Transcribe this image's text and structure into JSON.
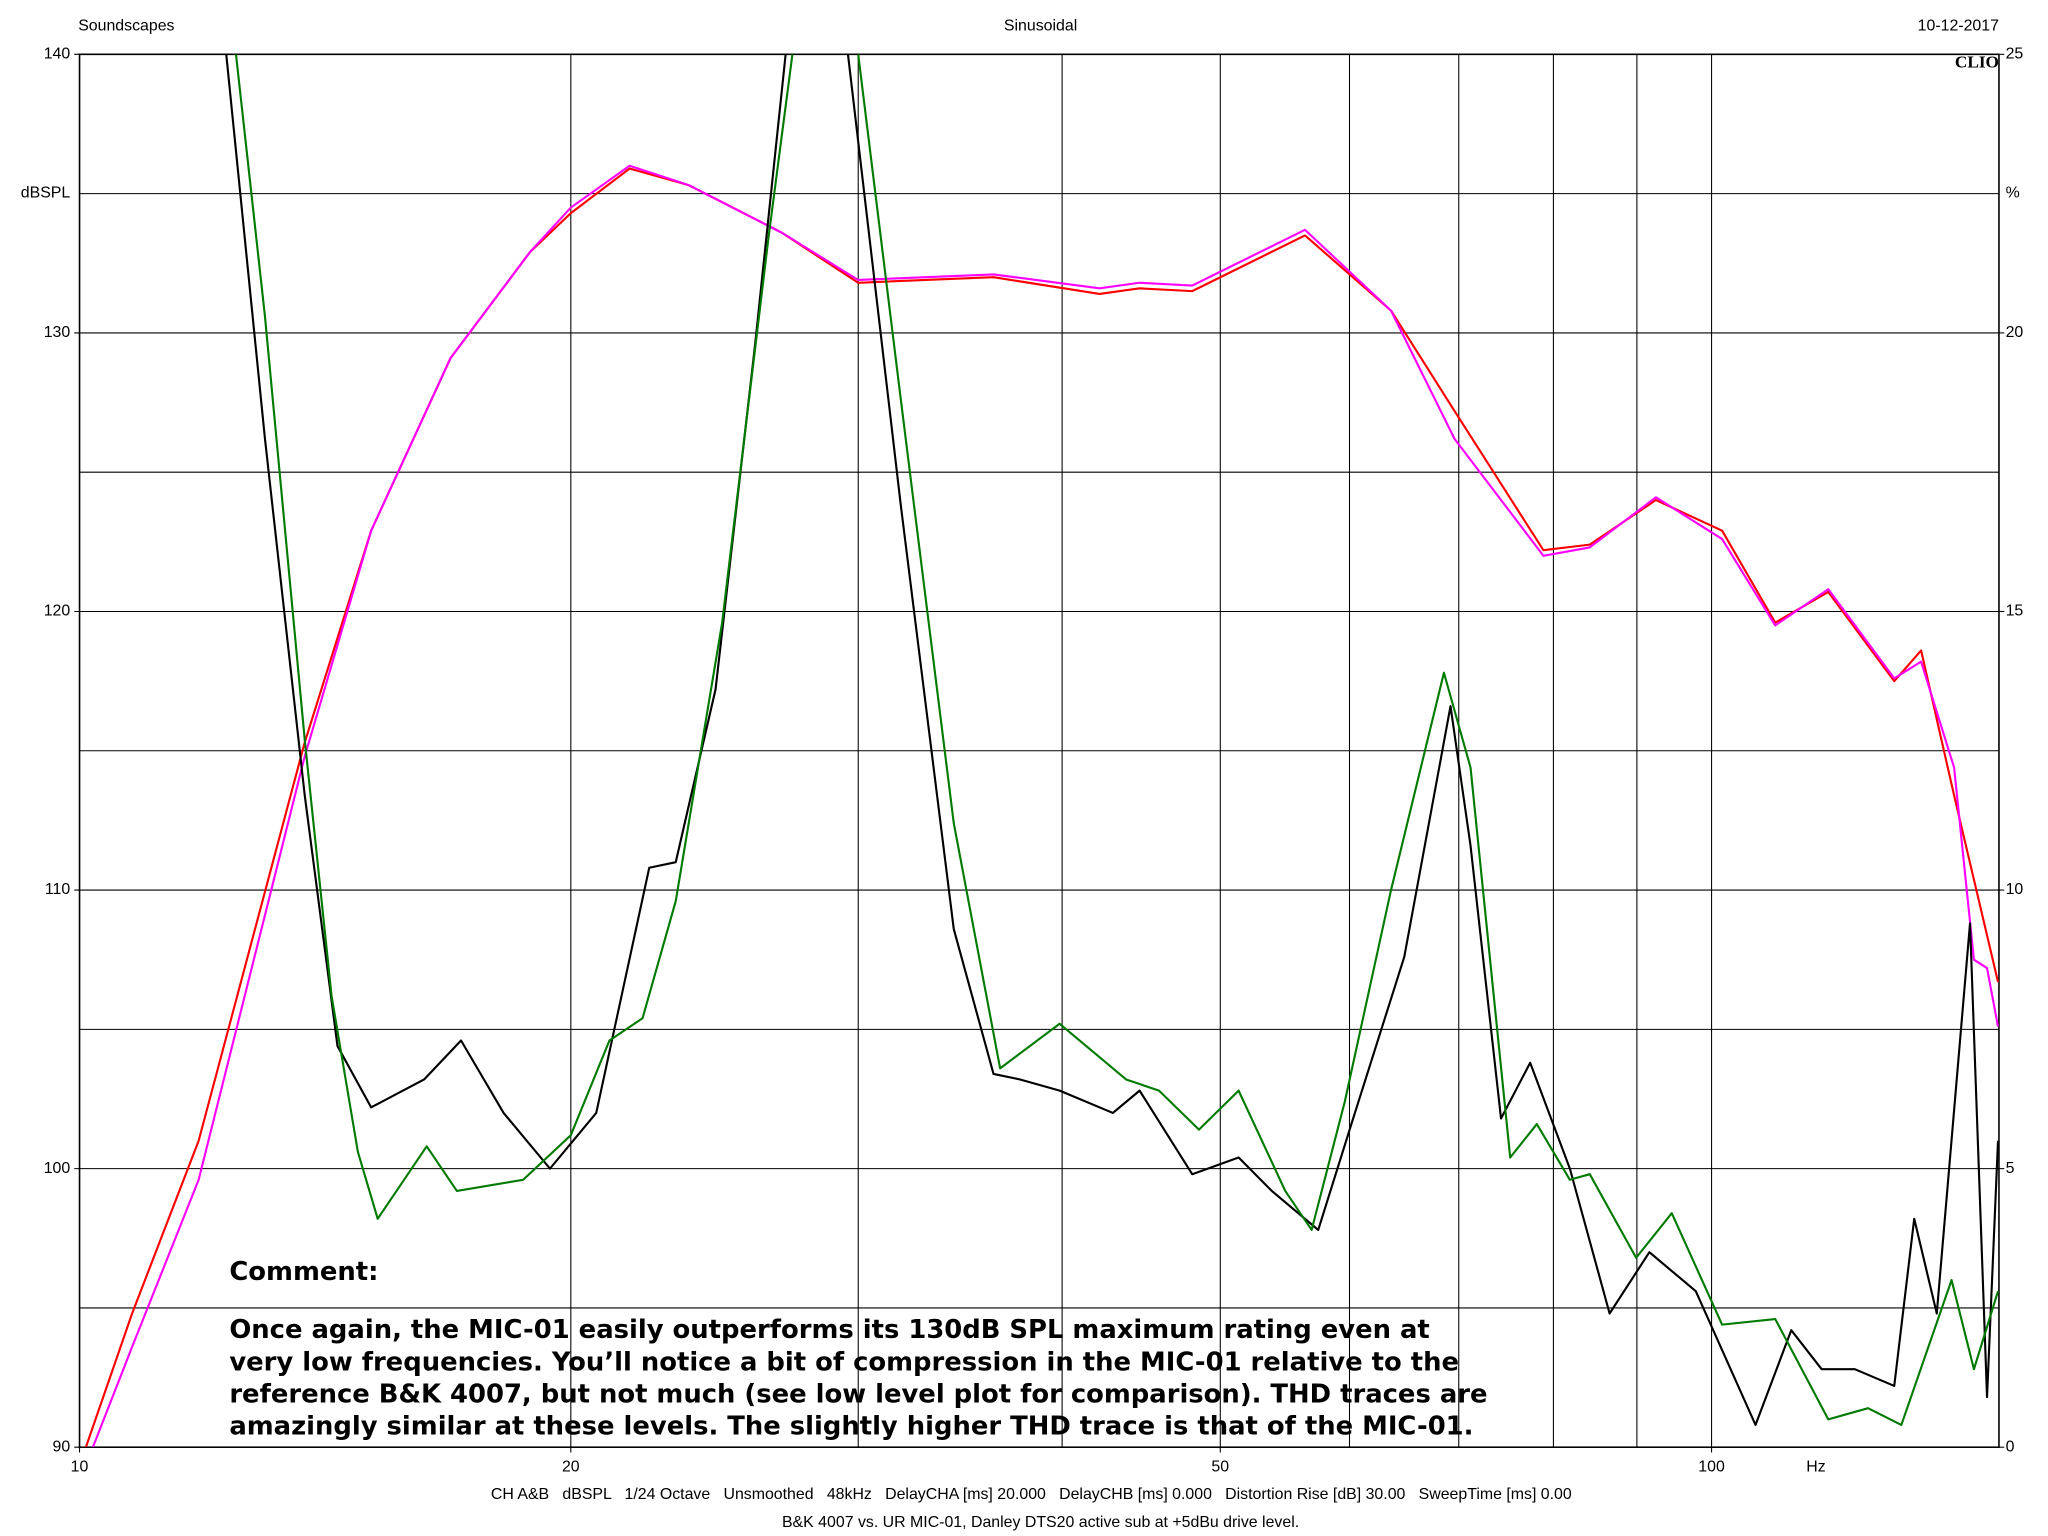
{
  "chart_data": {
    "type": "line",
    "header_left": "Soundscapes",
    "header_center": "Sinusoidal",
    "header_right": "10-12-2017",
    "brand": "CLIO",
    "ylabel": "dBSPL",
    "y2label": "%",
    "xlabel": "Hz",
    "log_x": true,
    "grid": true,
    "xlim": [
      10,
      150
    ],
    "xticks": [
      10,
      20,
      50,
      100
    ],
    "x_minor_grid": [
      30,
      40,
      60,
      70,
      80,
      90
    ],
    "ylim": [
      90,
      140
    ],
    "yticks": [
      90,
      100,
      110,
      120,
      130,
      140
    ],
    "y_minor_grid": [
      95,
      105,
      115,
      125,
      135
    ],
    "y2lim": [
      0,
      25
    ],
    "y2ticks": [
      0,
      5,
      10,
      15,
      20,
      25
    ],
    "comment_title": "Comment:",
    "comment_lines": [
      "Once again, the MIC-01 easily outperforms its 130dB SPL maximum rating even at",
      "very low frequencies. You’ll notice a bit of compression in the MIC-01 relative to the",
      "reference B&K 4007, but not much (see low level plot for comparison). THD traces are",
      "amazingly similar at these levels. The slightly higher THD trace is that of the MIC-01."
    ],
    "footer_settings": "CH A&B   dBSPL   1/24 Octave   Unsmoothed   48kHz   DelayCHA [ms] 20.000   DelayCHB [ms] 0.000   Distortion Rise [dB] 30.00   SweepTime [ms] 0.00",
    "footer_caption": "B&K 4007 vs. UR MIC-01, Danley DTS20 active sub at +5dBu drive level.",
    "series": [
      {
        "color": "#ff0000",
        "axis": "y",
        "x": [
          10.09,
          10.77,
          11.83,
          13.74,
          15.09,
          16.88,
          18.88,
          20.0,
          21.73,
          23.63,
          26.93,
          30.0,
          36.31,
          42.17,
          44.62,
          48.06,
          56.35,
          63.62,
          69.58,
          78.88,
          84.21,
          92.45,
          101.5,
          109.4,
          117.9,
          129.4,
          134.4,
          140.8,
          149.8
        ],
        "values": [
          90,
          94.8,
          101,
          115.3,
          122.9,
          129.1,
          132.9,
          134.3,
          135.9,
          135.3,
          133.6,
          131.8,
          132,
          131.4,
          131.6,
          131.5,
          133.5,
          130.8,
          127.2,
          122.2,
          122.4,
          124,
          122.9,
          119.6,
          120.7,
          117.5,
          118.6,
          113.4,
          106.7
        ]
      },
      {
        "color": "#ff00ff",
        "axis": "y",
        "x": [
          10.19,
          10.77,
          11.83,
          13.74,
          15.09,
          16.88,
          18.88,
          20.0,
          21.73,
          23.63,
          26.93,
          30.0,
          36.31,
          42.17,
          44.62,
          48.06,
          56.35,
          63.62,
          69.58,
          78.88,
          84.21,
          92.45,
          101.5,
          109.4,
          117.9,
          129.4,
          134.4,
          140.8,
          144.8,
          147.5,
          149.8
        ],
        "values": [
          90,
          93.6,
          99.6,
          114.8,
          122.9,
          129.1,
          132.9,
          134.5,
          136,
          135.3,
          133.6,
          131.9,
          132.1,
          131.6,
          131.8,
          131.7,
          133.7,
          130.8,
          126.2,
          122,
          122.3,
          124.1,
          122.6,
          119.5,
          120.8,
          117.6,
          118.2,
          114.4,
          107.5,
          107.2,
          105.1
        ]
      },
      {
        "color": "#000000",
        "axis": "y2",
        "x": [
          12.3,
          12.99,
          13.74,
          14.39,
          15.09,
          16.26,
          17.13,
          18.19,
          19.42,
          20.73,
          22.34,
          23.19,
          24.53,
          25.94,
          27.08,
          28.3,
          29.57,
          31.86,
          34.33,
          36.31,
          37.7,
          39.86,
          42.97,
          44.62,
          48.06,
          51.31,
          53.77,
          57.41,
          60.16,
          64.82,
          69.19,
          71.17,
          74.3,
          77.42,
          81.88,
          86.6,
          91.6,
          97.8,
          106.4,
          111.9,
          116.8,
          122.4,
          129.4,
          133.1,
          137.4,
          144.0,
          147.5,
          149.8
        ],
        "values": [
          25,
          18.1,
          11.7,
          7.2,
          6.1,
          6.6,
          7.3,
          6.0,
          5.0,
          6.0,
          10.4,
          10.5,
          13.6,
          19.8,
          25,
          null,
          25,
          16.9,
          9.3,
          6.7,
          6.6,
          6.4,
          6.0,
          6.4,
          4.9,
          5.2,
          4.6,
          3.9,
          5.8,
          8.8,
          13.3,
          10.8,
          5.9,
          6.9,
          5.0,
          2.4,
          3.5,
          2.8,
          0.4,
          2.1,
          1.4,
          1.4,
          1.1,
          4.1,
          2.4,
          9.4,
          0.9,
          5.5
        ]
      },
      {
        "color": "#007a00",
        "axis": "y2",
        "x": [
          12.47,
          12.99,
          13.74,
          14.27,
          14.81,
          15.23,
          16.32,
          17.03,
          18.7,
          20.0,
          21.12,
          22.13,
          23.19,
          24.76,
          26.43,
          27.34,
          28.6,
          30.0,
          31.86,
          34.33,
          36.65,
          39.86,
          43.78,
          45.86,
          48.52,
          51.31,
          54.8,
          56.88,
          59.6,
          63.62,
          68.55,
          71.17,
          75.27,
          78.15,
          81.88,
          84.21,
          89.9,
          94.54,
          101.5,
          109.4,
          117.9,
          124.7,
          130.7,
          140.3,
          144.8,
          149.8
        ],
        "values": [
          25,
          20.3,
          12.7,
          8.1,
          5.3,
          4.1,
          5.4,
          4.6,
          4.8,
          5.6,
          7.3,
          7.7,
          9.8,
          14.8,
          21.7,
          25,
          null,
          25,
          18.8,
          11.2,
          6.8,
          7.6,
          6.6,
          6.4,
          5.7,
          6.4,
          4.6,
          3.9,
          6.2,
          10.0,
          13.9,
          12.2,
          5.2,
          5.8,
          4.8,
          4.9,
          3.4,
          4.2,
          2.2,
          2.3,
          0.5,
          0.7,
          0.4,
          3.0,
          1.4,
          2.8
        ]
      }
    ]
  }
}
